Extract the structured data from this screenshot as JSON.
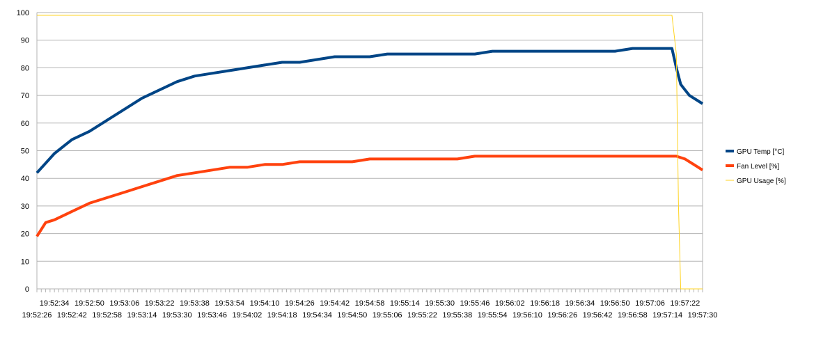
{
  "chart_data": {
    "type": "line",
    "title": "",
    "xlabel": "",
    "ylabel": "",
    "ylim": [
      0,
      100
    ],
    "yticks": [
      0,
      10,
      20,
      30,
      40,
      50,
      60,
      70,
      80,
      90,
      100
    ],
    "grid": "horizontal",
    "legend": "right",
    "x_start": "19:52:26",
    "x_end": "19:57:30",
    "x_step_seconds": 2,
    "xticks_upper": [
      "19:52:34",
      "19:52:50",
      "19:53:06",
      "19:53:22",
      "19:53:38",
      "19:53:54",
      "19:54:10",
      "19:54:26",
      "19:54:42",
      "19:54:58",
      "19:55:14",
      "19:55:30",
      "19:55:46",
      "19:56:02",
      "19:56:18",
      "19:56:34",
      "19:56:50",
      "19:57:06",
      "19:57:22"
    ],
    "xticks_lower": [
      "19:52:26",
      "19:52:42",
      "19:52:58",
      "19:53:14",
      "19:53:30",
      "19:53:46",
      "19:54:02",
      "19:54:18",
      "19:54:34",
      "19:54:50",
      "19:55:06",
      "19:55:22",
      "19:55:38",
      "19:55:54",
      "19:56:10",
      "19:56:26",
      "19:56:42",
      "19:56:58",
      "19:57:14",
      "19:57:30"
    ],
    "series": [
      {
        "name": "GPU Temp [°C]",
        "color": "#004586",
        "width": 4,
        "points": [
          [
            "19:52:26",
            42
          ],
          [
            "19:52:34",
            49
          ],
          [
            "19:52:42",
            54
          ],
          [
            "19:52:50",
            57
          ],
          [
            "19:52:58",
            61
          ],
          [
            "19:53:06",
            65
          ],
          [
            "19:53:14",
            69
          ],
          [
            "19:53:22",
            72
          ],
          [
            "19:53:30",
            75
          ],
          [
            "19:53:38",
            77
          ],
          [
            "19:53:46",
            78
          ],
          [
            "19:53:54",
            79
          ],
          [
            "19:54:02",
            80
          ],
          [
            "19:54:10",
            81
          ],
          [
            "19:54:18",
            82
          ],
          [
            "19:54:26",
            82
          ],
          [
            "19:54:34",
            83
          ],
          [
            "19:54:42",
            84
          ],
          [
            "19:54:50",
            84
          ],
          [
            "19:54:58",
            84
          ],
          [
            "19:55:06",
            85
          ],
          [
            "19:55:14",
            85
          ],
          [
            "19:55:22",
            85
          ],
          [
            "19:55:30",
            85
          ],
          [
            "19:55:38",
            85
          ],
          [
            "19:55:46",
            85
          ],
          [
            "19:55:54",
            86
          ],
          [
            "19:56:02",
            86
          ],
          [
            "19:56:10",
            86
          ],
          [
            "19:56:18",
            86
          ],
          [
            "19:56:26",
            86
          ],
          [
            "19:56:34",
            86
          ],
          [
            "19:56:42",
            86
          ],
          [
            "19:56:50",
            86
          ],
          [
            "19:56:58",
            87
          ],
          [
            "19:57:06",
            87
          ],
          [
            "19:57:14",
            87
          ],
          [
            "19:57:16",
            87
          ],
          [
            "19:57:18",
            80
          ],
          [
            "19:57:20",
            74
          ],
          [
            "19:57:22",
            72
          ],
          [
            "19:57:24",
            70
          ],
          [
            "19:57:26",
            69
          ],
          [
            "19:57:28",
            68
          ],
          [
            "19:57:30",
            67
          ]
        ]
      },
      {
        "name": "Fan Level [%]",
        "color": "#ff420e",
        "width": 4,
        "points": [
          [
            "19:52:26",
            19
          ],
          [
            "19:52:30",
            24
          ],
          [
            "19:52:34",
            25
          ],
          [
            "19:52:42",
            28
          ],
          [
            "19:52:50",
            31
          ],
          [
            "19:52:58",
            33
          ],
          [
            "19:53:06",
            35
          ],
          [
            "19:53:14",
            37
          ],
          [
            "19:53:22",
            39
          ],
          [
            "19:53:30",
            41
          ],
          [
            "19:53:38",
            42
          ],
          [
            "19:53:46",
            43
          ],
          [
            "19:53:54",
            44
          ],
          [
            "19:54:02",
            44
          ],
          [
            "19:54:10",
            45
          ],
          [
            "19:54:18",
            45
          ],
          [
            "19:54:26",
            46
          ],
          [
            "19:54:34",
            46
          ],
          [
            "19:54:42",
            46
          ],
          [
            "19:54:50",
            46
          ],
          [
            "19:54:58",
            47
          ],
          [
            "19:55:06",
            47
          ],
          [
            "19:55:14",
            47
          ],
          [
            "19:55:22",
            47
          ],
          [
            "19:55:30",
            47
          ],
          [
            "19:55:38",
            47
          ],
          [
            "19:55:46",
            48
          ],
          [
            "19:55:54",
            48
          ],
          [
            "19:56:02",
            48
          ],
          [
            "19:56:10",
            48
          ],
          [
            "19:56:18",
            48
          ],
          [
            "19:56:26",
            48
          ],
          [
            "19:56:34",
            48
          ],
          [
            "19:56:42",
            48
          ],
          [
            "19:56:50",
            48
          ],
          [
            "19:56:58",
            48
          ],
          [
            "19:57:06",
            48
          ],
          [
            "19:57:14",
            48
          ],
          [
            "19:57:18",
            48
          ],
          [
            "19:57:22",
            47
          ],
          [
            "19:57:26",
            45
          ],
          [
            "19:57:30",
            43
          ]
        ]
      },
      {
        "name": "GPU Usage [%]",
        "color": "#ffd320",
        "width": 1,
        "points": [
          [
            "19:52:26",
            99
          ],
          [
            "19:52:42",
            99
          ],
          [
            "19:53:06",
            99
          ],
          [
            "19:53:30",
            99
          ],
          [
            "19:53:54",
            99
          ],
          [
            "19:54:18",
            99
          ],
          [
            "19:54:42",
            99
          ],
          [
            "19:55:06",
            99
          ],
          [
            "19:55:30",
            99
          ],
          [
            "19:55:54",
            99
          ],
          [
            "19:56:18",
            99
          ],
          [
            "19:56:42",
            99
          ],
          [
            "19:57:06",
            99
          ],
          [
            "19:57:16",
            99
          ],
          [
            "19:57:18",
            85
          ],
          [
            "19:57:19",
            30
          ],
          [
            "19:57:20",
            0
          ],
          [
            "19:57:30",
            0
          ]
        ]
      }
    ]
  }
}
